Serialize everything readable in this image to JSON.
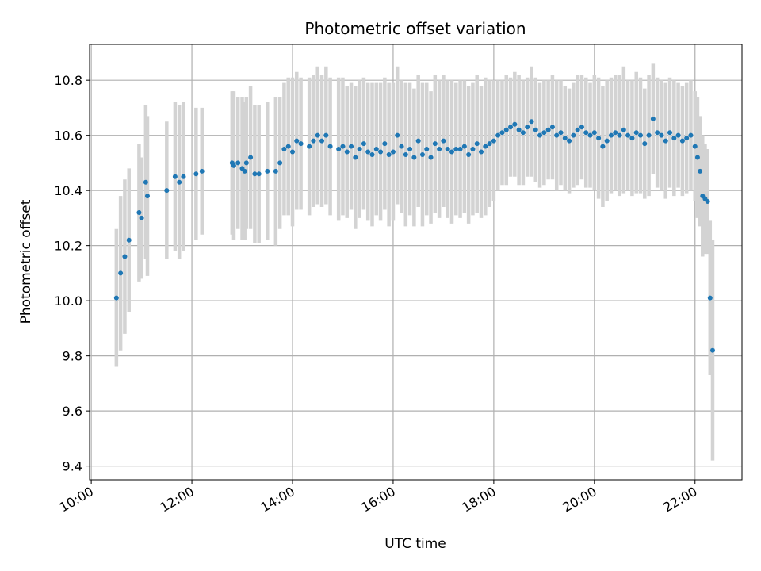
{
  "chart_data": {
    "type": "scatter",
    "title": "Photometric offset variation",
    "xlabel": "UTC time",
    "ylabel": "Photometric offset",
    "xlim": [
      "09:58",
      "22:56"
    ],
    "ylim": [
      9.35,
      10.93
    ],
    "x_ticks": [
      "10:00",
      "12:00",
      "14:00",
      "16:00",
      "18:00",
      "20:00",
      "22:00"
    ],
    "y_ticks": [
      "9.4",
      "9.6",
      "9.8",
      "10.0",
      "10.2",
      "10.4",
      "10.6",
      "10.8"
    ],
    "grid": true,
    "colors": {
      "points": "#1f77b4",
      "error_bars": "#d3d3d3",
      "grid": "#b0b0b0"
    },
    "series": [
      {
        "x": [
          "10:30",
          "10:35",
          "10:40",
          "10:45",
          "10:57",
          "11:00",
          "11:05",
          "11:07",
          "11:30",
          "11:40",
          "11:45",
          "11:50",
          "12:05",
          "12:12",
          "12:48",
          "12:50",
          "12:55",
          "13:00",
          "13:03",
          "13:05",
          "13:10",
          "13:15",
          "13:20",
          "13:30",
          "13:40",
          "13:45",
          "13:50",
          "13:55",
          "14:00",
          "14:05",
          "14:10",
          "14:20",
          "14:25",
          "14:30",
          "14:35",
          "14:40",
          "14:45",
          "14:55",
          "15:00",
          "15:05",
          "15:10",
          "15:15",
          "15:20",
          "15:25",
          "15:30",
          "15:35",
          "15:40",
          "15:45",
          "15:50",
          "15:55",
          "16:00",
          "16:05",
          "16:10",
          "16:15",
          "16:20",
          "16:25",
          "16:30",
          "16:35",
          "16:40",
          "16:45",
          "16:50",
          "16:55",
          "17:00",
          "17:05",
          "17:10",
          "17:15",
          "17:20",
          "17:25",
          "17:30",
          "17:35",
          "17:40",
          "17:45",
          "17:50",
          "17:55",
          "18:00",
          "18:05",
          "18:10",
          "18:15",
          "18:20",
          "18:25",
          "18:30",
          "18:35",
          "18:40",
          "18:45",
          "18:50",
          "18:55",
          "19:00",
          "19:05",
          "19:10",
          "19:15",
          "19:20",
          "19:25",
          "19:30",
          "19:35",
          "19:40",
          "19:45",
          "19:50",
          "19:55",
          "20:00",
          "20:05",
          "20:10",
          "20:15",
          "20:20",
          "20:25",
          "20:30",
          "20:35",
          "20:40",
          "20:45",
          "20:50",
          "20:55",
          "21:00",
          "21:05",
          "21:10",
          "21:15",
          "21:20",
          "21:25",
          "21:30",
          "21:35",
          "21:40",
          "21:45",
          "21:50",
          "21:55",
          "22:00",
          "22:03",
          "22:06",
          "22:09",
          "22:12",
          "22:15",
          "22:18",
          "22:21"
        ],
        "y": [
          10.01,
          10.1,
          10.16,
          10.22,
          10.32,
          10.3,
          10.43,
          10.38,
          10.4,
          10.45,
          10.43,
          10.45,
          10.46,
          10.47,
          10.5,
          10.49,
          10.5,
          10.48,
          10.47,
          10.5,
          10.52,
          10.46,
          10.46,
          10.47,
          10.47,
          10.5,
          10.55,
          10.56,
          10.54,
          10.58,
          10.57,
          10.56,
          10.58,
          10.6,
          10.58,
          10.6,
          10.56,
          10.55,
          10.56,
          10.54,
          10.56,
          10.52,
          10.55,
          10.57,
          10.54,
          10.53,
          10.55,
          10.54,
          10.57,
          10.53,
          10.54,
          10.6,
          10.56,
          10.53,
          10.55,
          10.52,
          10.58,
          10.53,
          10.55,
          10.52,
          10.57,
          10.55,
          10.58,
          10.55,
          10.54,
          10.55,
          10.55,
          10.56,
          10.53,
          10.55,
          10.57,
          10.54,
          10.56,
          10.57,
          10.58,
          10.6,
          10.61,
          10.62,
          10.63,
          10.64,
          10.62,
          10.61,
          10.63,
          10.65,
          10.62,
          10.6,
          10.61,
          10.62,
          10.63,
          10.6,
          10.61,
          10.59,
          10.58,
          10.6,
          10.62,
          10.63,
          10.61,
          10.6,
          10.61,
          10.59,
          10.56,
          10.58,
          10.6,
          10.61,
          10.6,
          10.62,
          10.6,
          10.59,
          10.61,
          10.6,
          10.57,
          10.6,
          10.66,
          10.61,
          10.6,
          10.58,
          10.61,
          10.59,
          10.6,
          10.58,
          10.59,
          10.6,
          10.56,
          10.52,
          10.47,
          10.38,
          10.37,
          10.36,
          10.01,
          9.82
        ],
        "err": [
          0.25,
          0.28,
          0.28,
          0.26,
          0.25,
          0.22,
          0.28,
          0.29,
          0.25,
          0.27,
          0.28,
          0.27,
          0.24,
          0.23,
          0.26,
          0.27,
          0.24,
          0.26,
          0.25,
          0.24,
          0.26,
          0.25,
          0.25,
          0.25,
          0.27,
          0.24,
          0.24,
          0.25,
          0.27,
          0.25,
          0.24,
          0.25,
          0.24,
          0.25,
          0.24,
          0.25,
          0.25,
          0.26,
          0.25,
          0.24,
          0.23,
          0.26,
          0.25,
          0.24,
          0.25,
          0.26,
          0.24,
          0.25,
          0.24,
          0.26,
          0.25,
          0.25,
          0.24,
          0.26,
          0.24,
          0.25,
          0.24,
          0.26,
          0.24,
          0.24,
          0.25,
          0.25,
          0.24,
          0.25,
          0.26,
          0.24,
          0.25,
          0.24,
          0.25,
          0.24,
          0.25,
          0.24,
          0.25,
          0.23,
          0.22,
          0.2,
          0.19,
          0.2,
          0.18,
          0.19,
          0.2,
          0.19,
          0.18,
          0.2,
          0.19,
          0.19,
          0.19,
          0.18,
          0.19,
          0.2,
          0.19,
          0.19,
          0.19,
          0.19,
          0.2,
          0.19,
          0.2,
          0.19,
          0.21,
          0.22,
          0.22,
          0.22,
          0.21,
          0.21,
          0.22,
          0.23,
          0.2,
          0.21,
          0.22,
          0.21,
          0.2,
          0.22,
          0.2,
          0.2,
          0.2,
          0.21,
          0.2,
          0.21,
          0.19,
          0.2,
          0.2,
          0.2,
          0.2,
          0.22,
          0.2,
          0.22,
          0.2,
          0.19,
          0.28,
          0.4
        ]
      }
    ]
  }
}
